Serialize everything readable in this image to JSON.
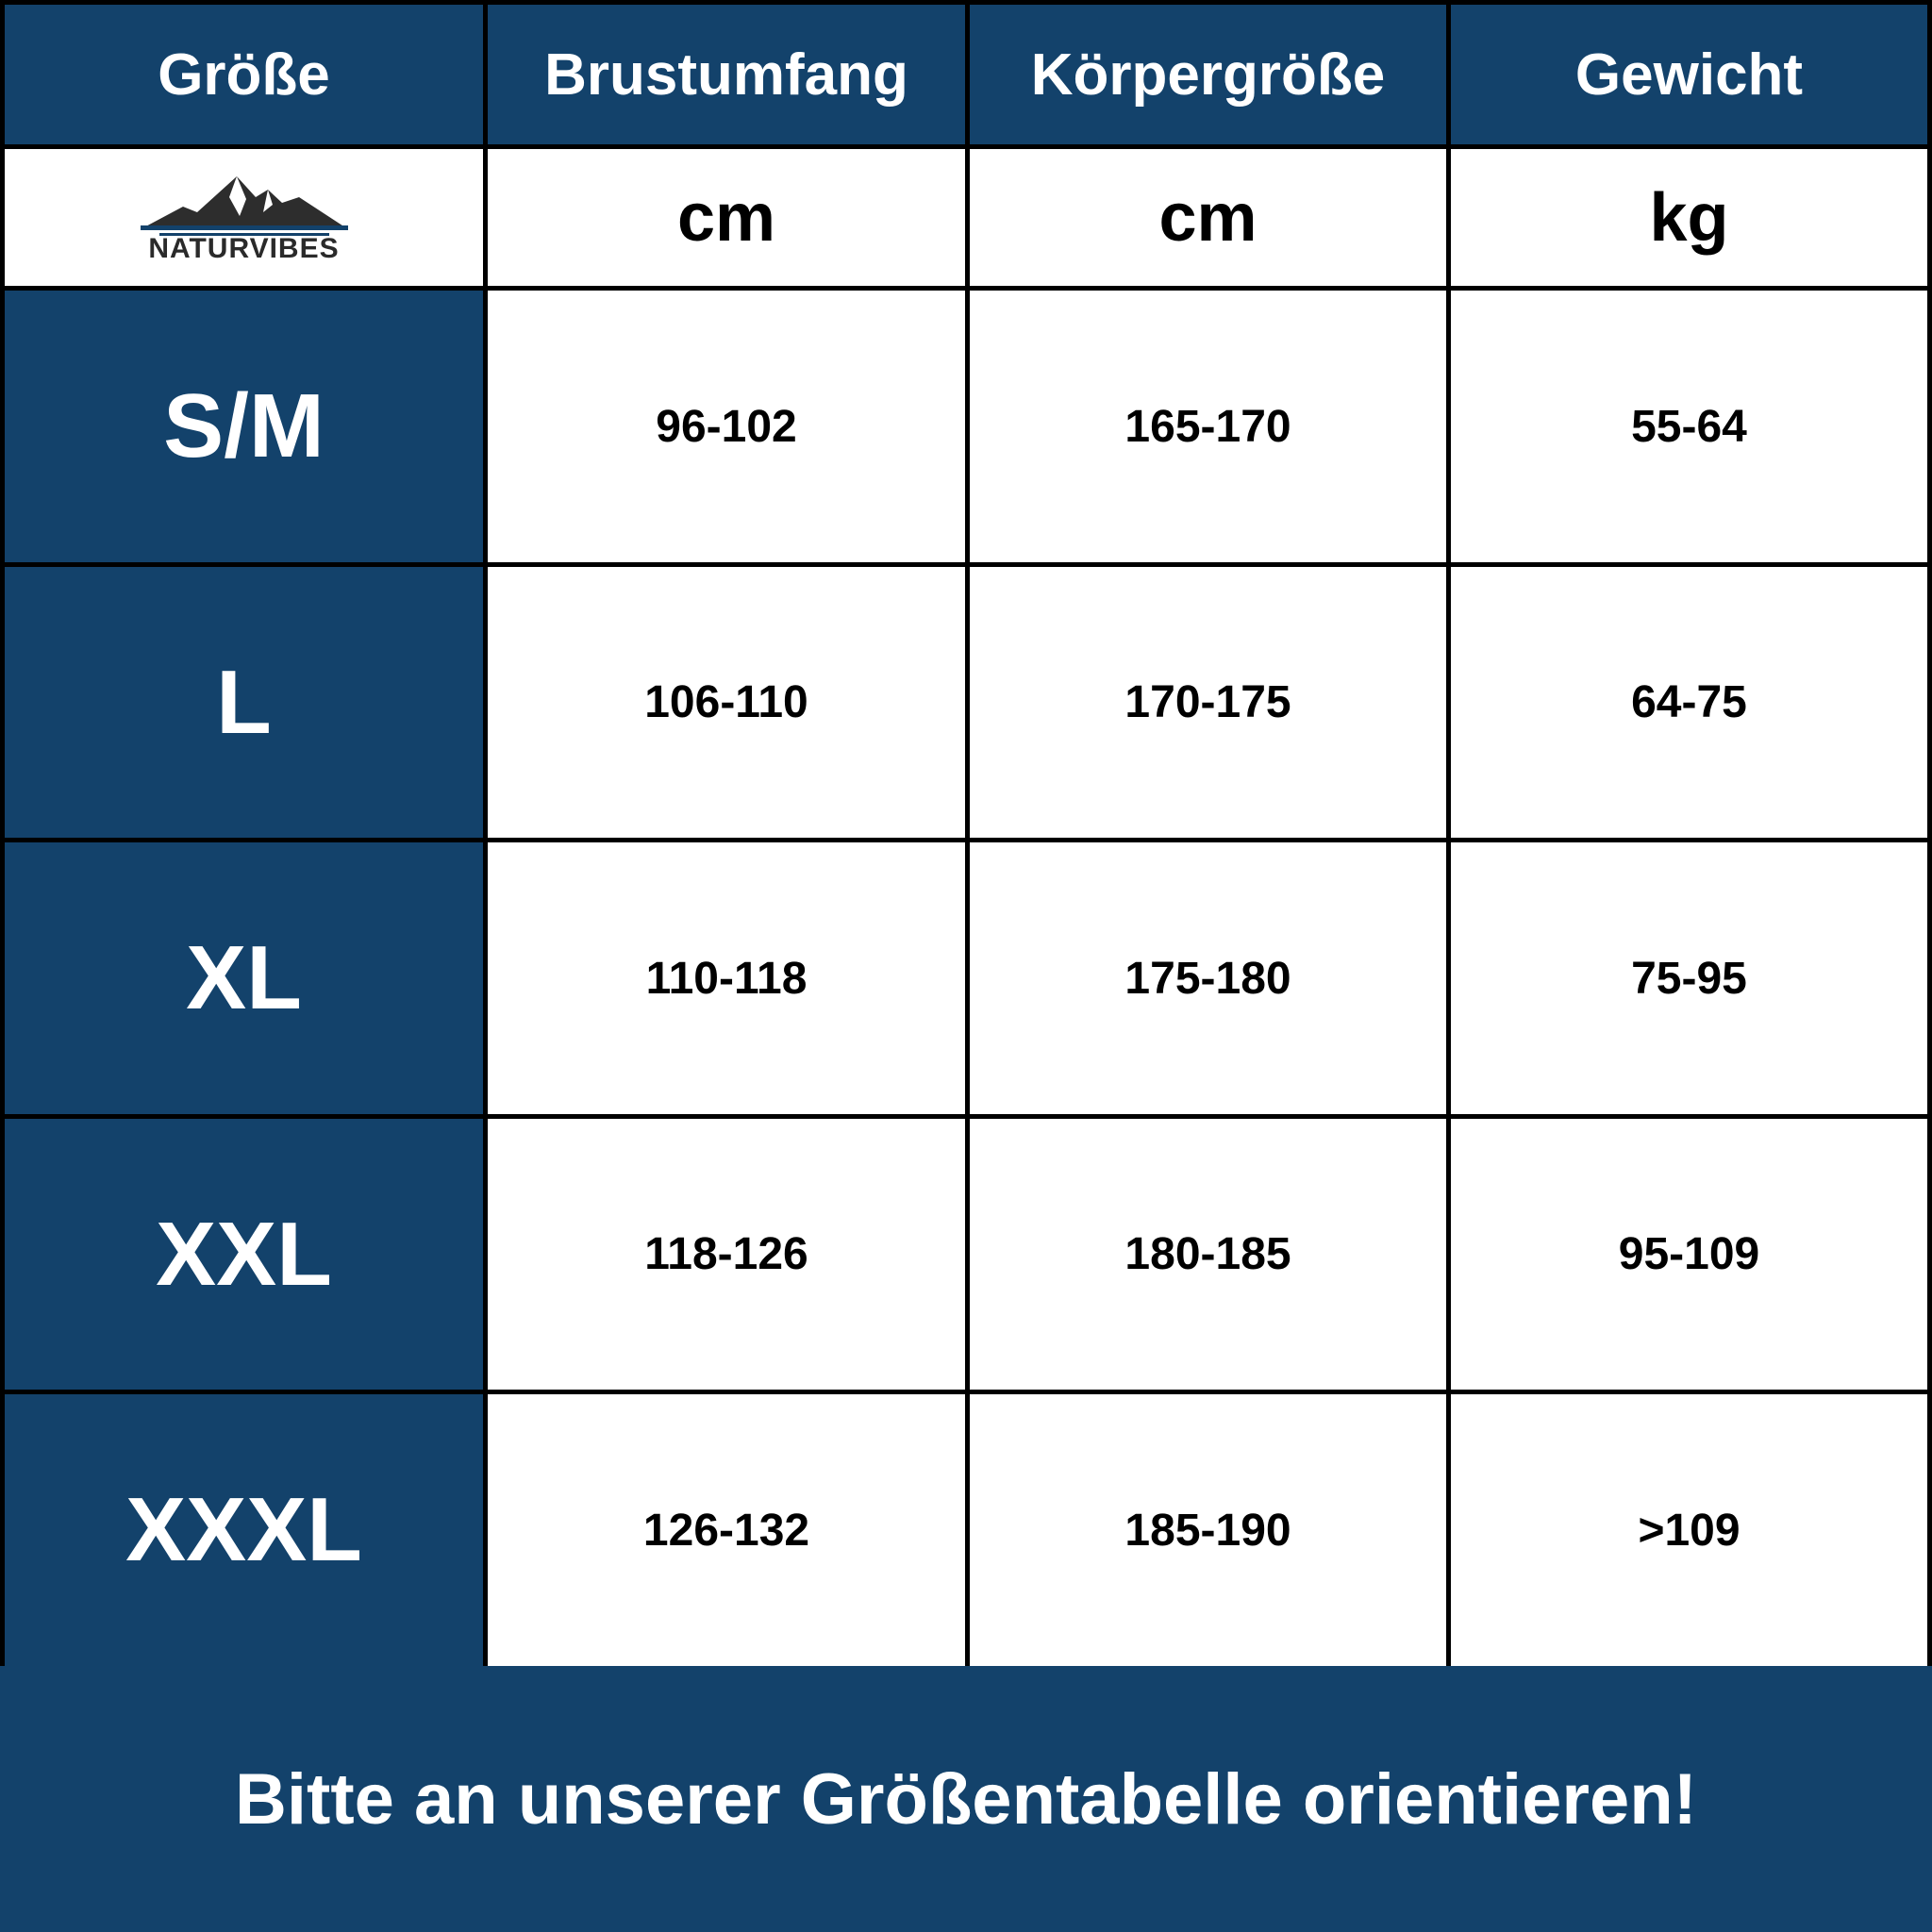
{
  "table": {
    "headers": [
      "Größe",
      "Brustumfang",
      "Körpergröße",
      "Gewicht"
    ],
    "logo": "NATURVIBES",
    "units": [
      "cm",
      "cm",
      "kg"
    ],
    "rows": [
      [
        "S/M",
        "96-102",
        "165-170",
        "55-64"
      ],
      [
        "L",
        "106-110",
        "170-175",
        "64-75"
      ],
      [
        "XL",
        "110-118",
        "175-180",
        "75-95"
      ],
      [
        "XXL",
        "118-126",
        "180-185",
        "95-109"
      ],
      [
        "XXXL",
        "126-132",
        "185-190",
        ">109"
      ]
    ]
  },
  "footer": "Bitte an unserer Größentabelle orientieren!"
}
